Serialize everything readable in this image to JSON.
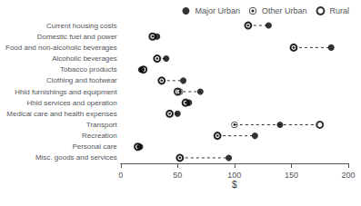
{
  "chart_data": {
    "type": "dot",
    "orientation": "horizontal",
    "categories": [
      "Current housing costs",
      "Domestic fuel and power",
      "Food and non-alcoholic beverages",
      "Alcoholic beverages",
      "Tobacco products",
      "Clothing and footwear",
      "Hhld furnishings and equipment",
      "Hhld services and operation",
      "Medical care and health expenses",
      "Transport",
      "Recreation",
      "Personal care",
      "Misc. goods and services"
    ],
    "series": [
      {
        "name": "Major Urban",
        "color": "#000000",
        "marker": "filled",
        "values": [
          130,
          32,
          185,
          40,
          18,
          55,
          70,
          60,
          50,
          140,
          118,
          17,
          95
        ]
      },
      {
        "name": "Other Urban",
        "color": "#000000",
        "marker": "dotted",
        "values": [
          112,
          28,
          152,
          32,
          20,
          36,
          52,
          57,
          43,
          100,
          85,
          15,
          52
        ]
      },
      {
        "name": "Rural",
        "color": "#000000",
        "marker": "open",
        "values": [
          112,
          28,
          152,
          32,
          20,
          36,
          50,
          57,
          43,
          175,
          85,
          15,
          52
        ]
      }
    ],
    "line_style": "dashed",
    "xlabel": "$",
    "xlim": [
      0,
      200
    ],
    "xticks": [
      0,
      50,
      100,
      150,
      200
    ],
    "grid": false,
    "legend": "upper right"
  }
}
